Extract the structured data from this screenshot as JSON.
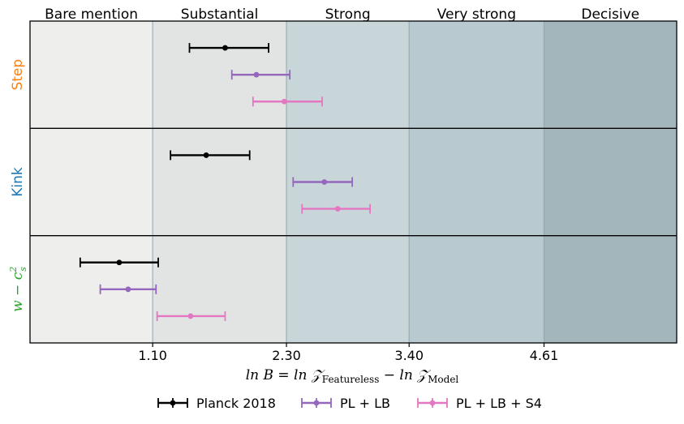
{
  "chart_data": {
    "type": "errorbar",
    "xlabel": "ln B = ln 𝒵Featureless − ln 𝒵Model",
    "xlabel_parts": {
      "lhs": "ln B = ln ",
      "z1": "𝒵",
      "sub1": "Featureless",
      "mid": " − ln ",
      "z2": "𝒵",
      "sub2": "Model"
    },
    "xlim": [
      0.0,
      5.8
    ],
    "xticks": [
      {
        "value": 1.1,
        "label": "1.10"
      },
      {
        "value": 2.3,
        "label": "2.30"
      },
      {
        "value": 3.4,
        "label": "3.40"
      },
      {
        "value": 4.61,
        "label": "4.61"
      }
    ],
    "regions": [
      {
        "label": "Bare mention",
        "from": 0.0,
        "to": 1.1,
        "color": "#eeeeec"
      },
      {
        "label": "Substantial",
        "from": 1.1,
        "to": 2.3,
        "color": "#e1e4e3"
      },
      {
        "label": "Strong",
        "from": 2.3,
        "to": 3.4,
        "color": "#c8d6da"
      },
      {
        "label": "Very strong",
        "from": 3.4,
        "to": 4.61,
        "color": "#b8cacf"
      },
      {
        "label": "Decisive",
        "from": 4.61,
        "to": 5.8,
        "color": "#a3b6bb"
      }
    ],
    "panels": [
      {
        "label": "Step",
        "color": "#ff7f0e",
        "math": false
      },
      {
        "label": "Kink",
        "color": "#1f77b4",
        "math": false
      },
      {
        "label": "w − c",
        "label_sup": "2",
        "label_sub": "s",
        "color": "#2ca02c",
        "math": true
      }
    ],
    "series": [
      {
        "name": "Planck 2018",
        "color": "#000000",
        "points": [
          {
            "panel": 0,
            "value": 1.75,
            "low": 1.43,
            "high": 2.14
          },
          {
            "panel": 1,
            "value": 1.58,
            "low": 1.26,
            "high": 1.97
          },
          {
            "panel": 2,
            "value": 0.8,
            "low": 0.45,
            "high": 1.15
          }
        ]
      },
      {
        "name": "PL + LB",
        "color": "#9467bd",
        "points": [
          {
            "panel": 0,
            "value": 2.03,
            "low": 1.81,
            "high": 2.33
          },
          {
            "panel": 1,
            "value": 2.64,
            "low": 2.36,
            "high": 2.89
          },
          {
            "panel": 2,
            "value": 0.88,
            "low": 0.63,
            "high": 1.13
          }
        ]
      },
      {
        "name": "PL + LB + S4",
        "color": "#e377c2",
        "points": [
          {
            "panel": 0,
            "value": 2.28,
            "low": 2.0,
            "high": 2.62
          },
          {
            "panel": 1,
            "value": 2.76,
            "low": 2.44,
            "high": 3.05
          },
          {
            "panel": 2,
            "value": 1.44,
            "low": 1.14,
            "high": 1.75
          }
        ]
      }
    ]
  }
}
